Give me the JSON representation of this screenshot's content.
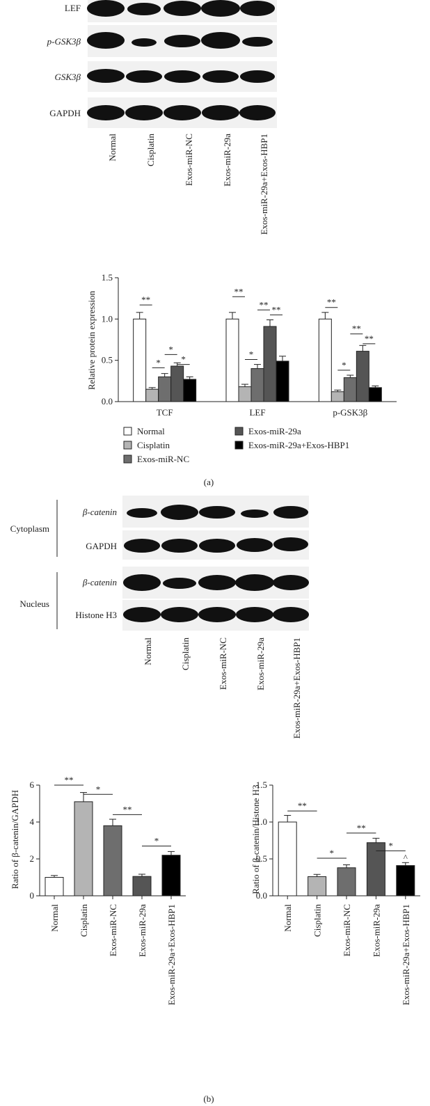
{
  "panel_a": {
    "blot_rows": [
      "LEF",
      "p-GSK3β",
      "GSK3β",
      "GAPDH"
    ],
    "lanes": [
      "Normal",
      "Cisplatin",
      "Exos-miR-NC",
      "Exos-miR-29a",
      "Exos-miR-29a+Exos-HBP1"
    ],
    "caption": "(a)"
  },
  "panel_b": {
    "cytoplasm_label": "Cytoplasm",
    "nucleus_label": "Nucleus",
    "blot_rows": [
      "β-catenin",
      "GAPDH",
      "β-catenin",
      "Histone H3"
    ],
    "lanes": [
      "Normal",
      "Cisplatin",
      "Exos-miR-NC",
      "Exos-miR-29a",
      "Exos-miR-29a+Exos-HBP1"
    ],
    "caption": "(b)"
  },
  "colors": {
    "Normal": "#ffffff",
    "Cisplatin": "#b4b4b4",
    "Exos-miR-NC": "#6e6e6e",
    "Exos-miR-29a": "#555555",
    "Exos-miR-29a+Exos-HBP1": "#000000"
  },
  "chart_data": [
    {
      "type": "bar",
      "categories": [
        "TCF",
        "LEF",
        "p-GSK3β"
      ],
      "series": [
        {
          "name": "Normal",
          "values": [
            1.0,
            1.0,
            1.0
          ],
          "errors": [
            0.08,
            0.08,
            0.08
          ]
        },
        {
          "name": "Cisplatin",
          "values": [
            0.15,
            0.18,
            0.12
          ],
          "errors": [
            0.02,
            0.03,
            0.02
          ]
        },
        {
          "name": "Exos-miR-NC",
          "values": [
            0.3,
            0.4,
            0.29
          ],
          "errors": [
            0.04,
            0.05,
            0.03
          ]
        },
        {
          "name": "Exos-miR-29a",
          "values": [
            0.43,
            0.91,
            0.61
          ],
          "errors": [
            0.04,
            0.08,
            0.07
          ]
        },
        {
          "name": "Exos-miR-29a+Exos-HBP1",
          "values": [
            0.27,
            0.49,
            0.17
          ],
          "errors": [
            0.03,
            0.06,
            0.02
          ]
        }
      ],
      "ylabel": "Relative protein expression",
      "xlabel": "",
      "ylim": [
        0,
        1.5
      ],
      "yticks": [
        "0.0",
        "0.5",
        "1.0",
        "1.5"
      ],
      "legend": "bottom",
      "significance": [
        {
          "group": 0,
          "from": 0,
          "to": 1,
          "label": "**",
          "y": 1.17
        },
        {
          "group": 0,
          "from": 1,
          "to": 2,
          "label": "*",
          "y": 0.41
        },
        {
          "group": 0,
          "from": 2,
          "to": 3,
          "label": "*",
          "y": 0.57
        },
        {
          "group": 0,
          "from": 3,
          "to": 4,
          "label": "*",
          "y": 0.45
        },
        {
          "group": 1,
          "from": 0,
          "to": 1,
          "label": "**",
          "y": 1.27
        },
        {
          "group": 1,
          "from": 1,
          "to": 2,
          "label": "*",
          "y": 0.51
        },
        {
          "group": 1,
          "from": 2,
          "to": 3,
          "label": "**",
          "y": 1.11
        },
        {
          "group": 1,
          "from": 3,
          "to": 4,
          "label": "**",
          "y": 1.05
        },
        {
          "group": 2,
          "from": 0,
          "to": 1,
          "label": "**",
          "y": 1.14
        },
        {
          "group": 2,
          "from": 1,
          "to": 2,
          "label": "*",
          "y": 0.38
        },
        {
          "group": 2,
          "from": 2,
          "to": 3,
          "label": "**",
          "y": 0.82
        },
        {
          "group": 2,
          "from": 3,
          "to": 4,
          "label": "**",
          "y": 0.7
        }
      ]
    },
    {
      "type": "bar",
      "categories": [
        "Normal",
        "Cisplatin",
        "Exos-miR-NC",
        "Exos-miR-29a",
        "Exos-miR-29a+Exos-HBP1"
      ],
      "values": [
        1.0,
        5.1,
        3.8,
        1.05,
        2.2
      ],
      "errors": [
        0.1,
        0.5,
        0.35,
        0.12,
        0.2
      ],
      "ylabel": "Ratio of β-catenin/GAPDH",
      "xlabel": "",
      "ylim": [
        0,
        6
      ],
      "yticks": [
        "0",
        "2",
        "4",
        "6"
      ],
      "significance": [
        {
          "from": 0,
          "to": 1,
          "label": "**",
          "y": 6.0
        },
        {
          "from": 1,
          "to": 2,
          "label": "*",
          "y": 5.5
        },
        {
          "from": 2,
          "to": 3,
          "label": "**",
          "y": 4.4
        },
        {
          "from": 3,
          "to": 4,
          "label": "*",
          "y": 2.7
        }
      ]
    },
    {
      "type": "bar",
      "categories": [
        "Normal",
        "Cisplatin",
        "Exos-miR-NC",
        "Exos-miR-29a",
        "Exos-miR-29a+Exos-HBP1"
      ],
      "values": [
        1.0,
        0.26,
        0.38,
        0.72,
        0.41
      ],
      "errors": [
        0.09,
        0.03,
        0.04,
        0.06,
        0.04
      ],
      "ylabel": "Ratio of β-catenin/Histone H3",
      "xlabel": "",
      "ylim": [
        0,
        1.5
      ],
      "yticks": [
        "0.0",
        "0.5",
        "1.0",
        "1.5"
      ],
      "significance": [
        {
          "from": 0,
          "to": 1,
          "label": "**",
          "y": 1.15
        },
        {
          "from": 1,
          "to": 2,
          "label": "*",
          "y": 0.51
        },
        {
          "from": 2,
          "to": 3,
          "label": "**",
          "y": 0.85
        },
        {
          "from": 3,
          "to": 4,
          "label": "*",
          "y": 0.61
        }
      ],
      "annotation": {
        "index": 4,
        "label": "^"
      }
    }
  ]
}
